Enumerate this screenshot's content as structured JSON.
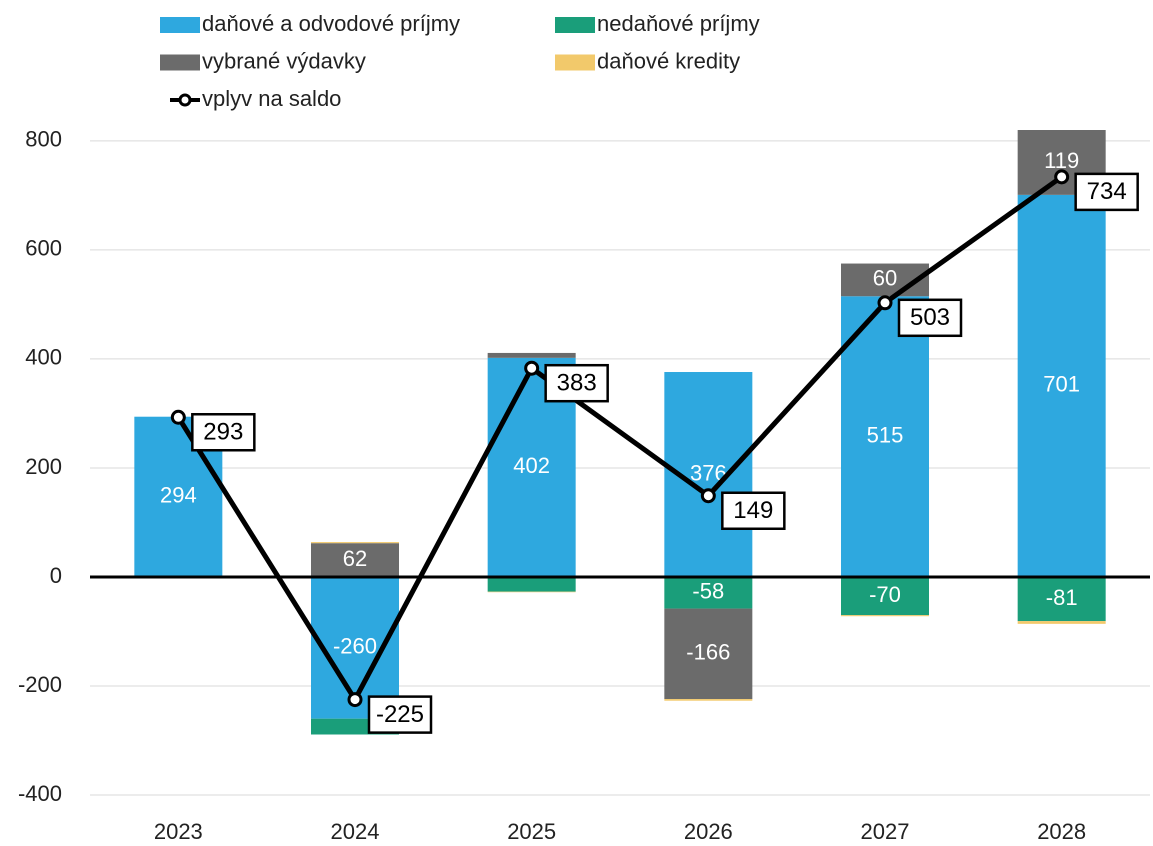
{
  "chart_data": {
    "type": "bar",
    "categories": [
      "2023",
      "2024",
      "2025",
      "2026",
      "2027",
      "2028"
    ],
    "series": [
      {
        "name": "daňové a odvodové príjmy",
        "color": "#2ea8df",
        "values": [
          294,
          -260,
          402,
          376,
          515,
          701
        ]
      },
      {
        "name": "nedaňové príjmy",
        "color": "#1a9e7a",
        "values": [
          0,
          -29,
          -27,
          -58,
          -70,
          -81
        ]
      },
      {
        "name": "vybrané výdavky",
        "color": "#6b6b6b",
        "values": [
          0,
          62,
          9,
          -166,
          60,
          119
        ]
      },
      {
        "name": "daňové kredity",
        "color": "#f2c96b",
        "values": [
          -1,
          2,
          -1,
          -3,
          -2,
          -5
        ]
      },
      {
        "name": "vplyv na saldo",
        "type": "line",
        "color": "#000000",
        "values": [
          293,
          -225,
          383,
          149,
          503,
          734
        ]
      }
    ],
    "ylim": [
      -400,
      820
    ],
    "yticks": [
      -400,
      -200,
      0,
      200,
      400,
      600,
      800
    ],
    "grid": true
  }
}
